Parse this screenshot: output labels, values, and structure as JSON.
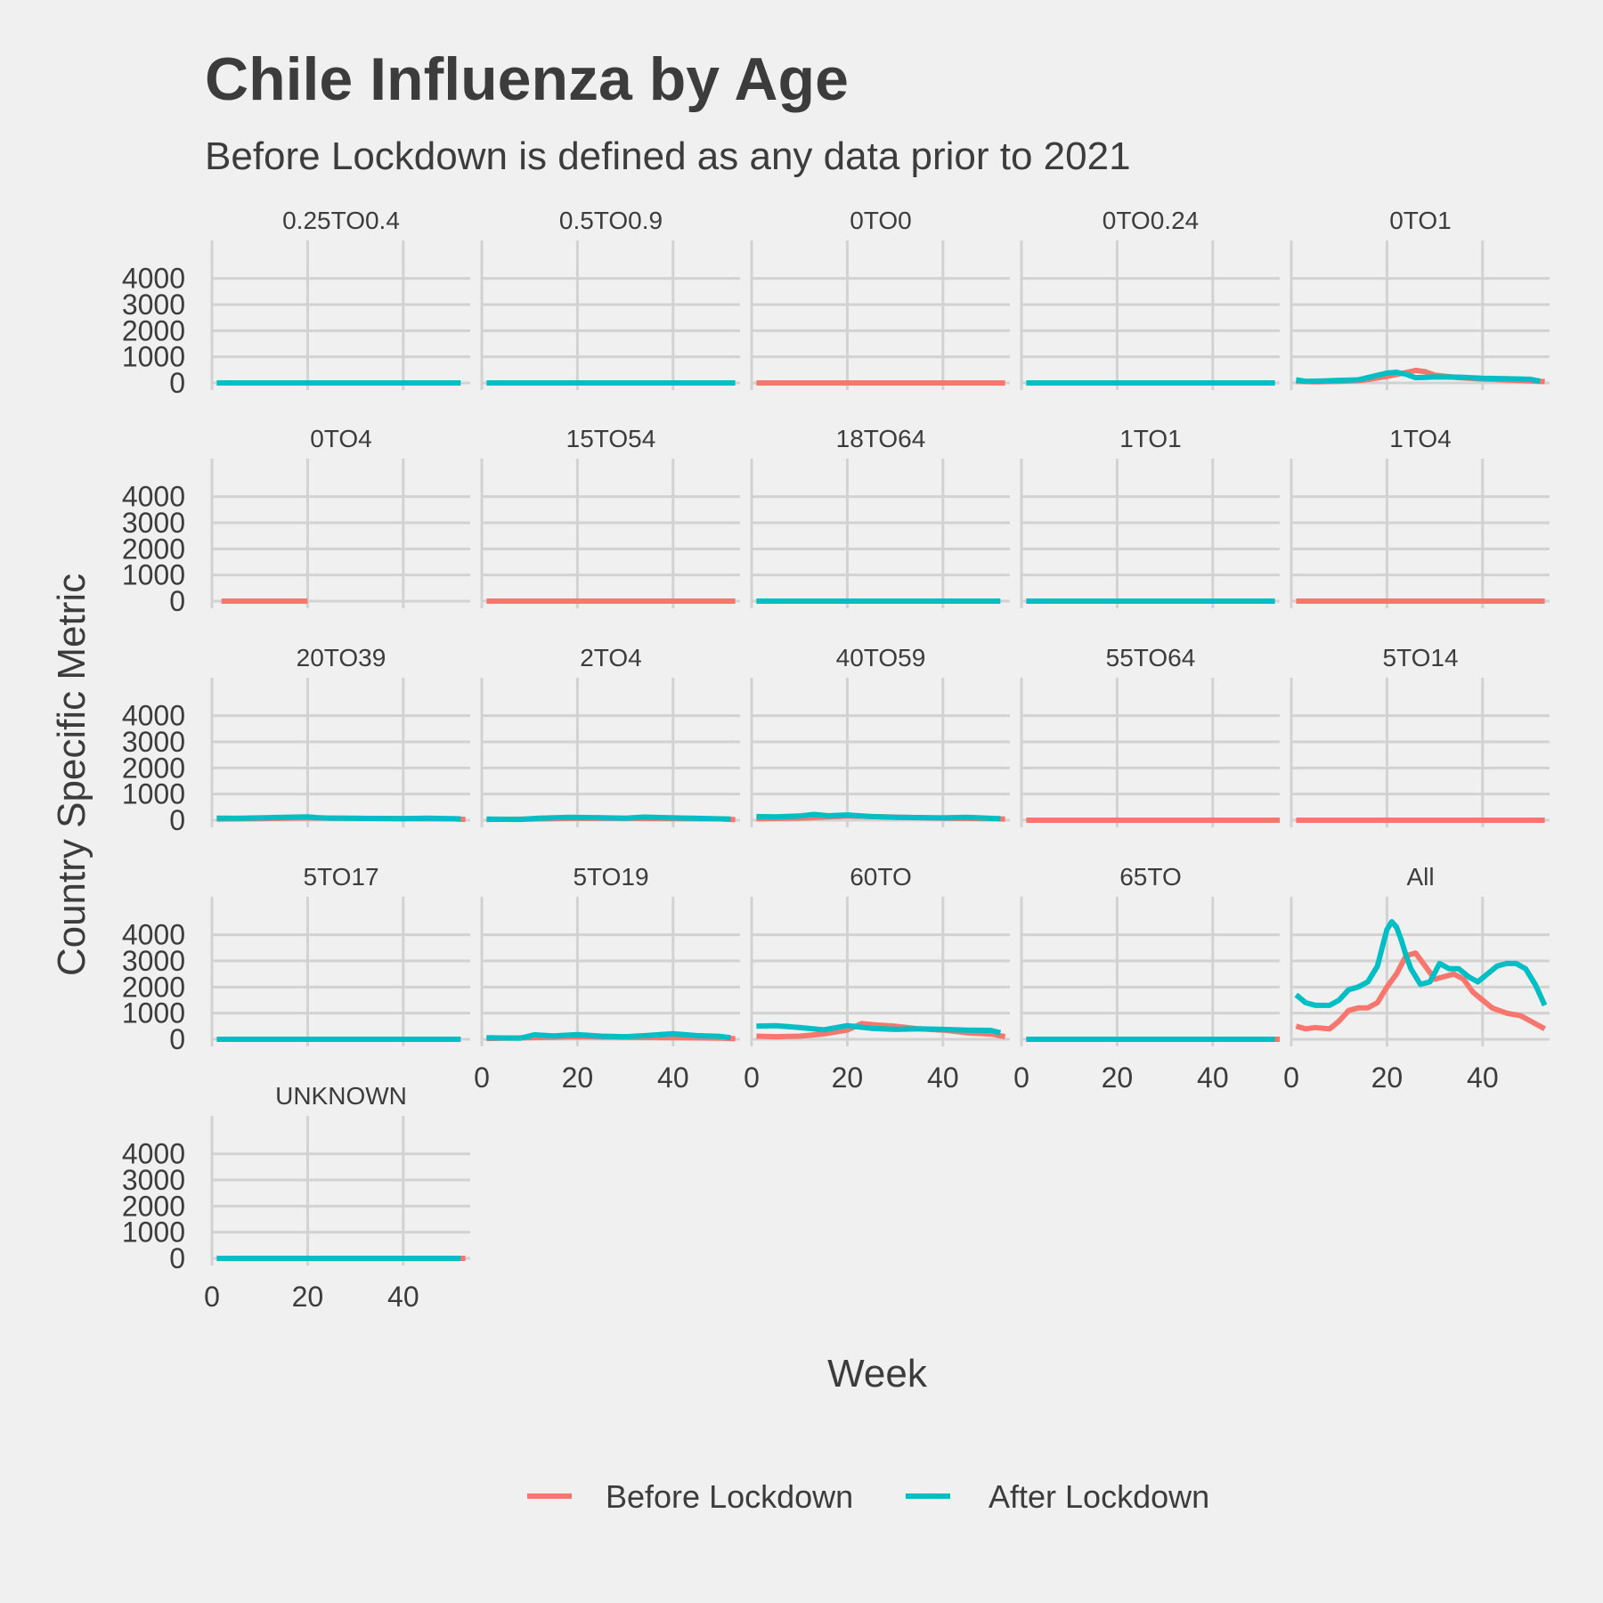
{
  "chart_data": {
    "type": "line",
    "title": "Chile Influenza by Age",
    "subtitle": "Before Lockdown is defined as any data prior to 2021",
    "xlabel": "Week",
    "ylabel": "Country Specific Metric",
    "xlim": [
      0,
      54
    ],
    "ylim": [
      0,
      4500
    ],
    "x_ticks": [
      "0",
      "20",
      "40"
    ],
    "y_ticks": [
      "0",
      "1000",
      "2000",
      "3000",
      "4000"
    ],
    "grid": true,
    "legend_position": "bottom",
    "legend": [
      {
        "name": "Before Lockdown",
        "color": "#f8766d"
      },
      {
        "name": "After Lockdown",
        "color": "#00bfc4"
      }
    ],
    "facets": [
      {
        "label": "0.25TO0.4",
        "series": [
          {
            "name": "After Lockdown",
            "x": [
              1,
              52
            ],
            "y": [
              0,
              0
            ]
          }
        ]
      },
      {
        "label": "0.5TO0.9",
        "series": [
          {
            "name": "After Lockdown",
            "x": [
              1,
              53
            ],
            "y": [
              0,
              0
            ]
          }
        ]
      },
      {
        "label": "0TO0",
        "series": [
          {
            "name": "Before Lockdown",
            "x": [
              1,
              53
            ],
            "y": [
              0,
              0
            ]
          }
        ]
      },
      {
        "label": "0TO0.24",
        "series": [
          {
            "name": "After Lockdown",
            "x": [
              1,
              53
            ],
            "y": [
              0,
              0
            ]
          }
        ]
      },
      {
        "label": "0TO1",
        "series": [
          {
            "name": "Before Lockdown",
            "x": [
              1,
              5,
              10,
              15,
              20,
              24,
              26,
              28,
              30,
              35,
              40,
              45,
              50,
              53
            ],
            "y": [
              60,
              40,
              60,
              100,
              250,
              400,
              480,
              430,
              300,
              200,
              150,
              110,
              80,
              50
            ]
          },
          {
            "name": "After Lockdown",
            "x": [
              1,
              3,
              6,
              10,
              14,
              17,
              20,
              22,
              24,
              26,
              28,
              30,
              35,
              40,
              45,
              50,
              52
            ],
            "y": [
              120,
              60,
              70,
              100,
              120,
              250,
              380,
              410,
              330,
              200,
              210,
              230,
              220,
              180,
              160,
              140,
              70
            ]
          }
        ]
      },
      {
        "label": "0TO4",
        "series": [
          {
            "name": "Before Lockdown",
            "x": [
              2,
              20
            ],
            "y": [
              0,
              0
            ]
          }
        ]
      },
      {
        "label": "15TO54",
        "series": [
          {
            "name": "Before Lockdown",
            "x": [
              1,
              53
            ],
            "y": [
              0,
              0
            ]
          }
        ]
      },
      {
        "label": "18TO64",
        "series": [
          {
            "name": "After Lockdown",
            "x": [
              1,
              52
            ],
            "y": [
              0,
              0
            ]
          }
        ]
      },
      {
        "label": "1TO1",
        "series": [
          {
            "name": "After Lockdown",
            "x": [
              1,
              53
            ],
            "y": [
              0,
              0
            ]
          }
        ]
      },
      {
        "label": "1TO4",
        "series": [
          {
            "name": "Before Lockdown",
            "x": [
              1,
              53
            ],
            "y": [
              0,
              0
            ]
          }
        ]
      },
      {
        "label": "20TO39",
        "series": [
          {
            "name": "Before Lockdown",
            "x": [
              1,
              10,
              20,
              30,
              40,
              50,
              53
            ],
            "y": [
              40,
              60,
              90,
              70,
              60,
              50,
              30
            ]
          },
          {
            "name": "After Lockdown",
            "x": [
              1,
              5,
              10,
              15,
              20,
              22,
              25,
              30,
              40,
              45,
              50,
              52
            ],
            "y": [
              80,
              70,
              90,
              110,
              130,
              100,
              80,
              70,
              60,
              80,
              60,
              50
            ]
          }
        ]
      },
      {
        "label": "2TO4",
        "series": [
          {
            "name": "Before Lockdown",
            "x": [
              1,
              10,
              20,
              30,
              40,
              50,
              53
            ],
            "y": [
              30,
              40,
              80,
              70,
              60,
              50,
              20
            ]
          },
          {
            "name": "After Lockdown",
            "x": [
              1,
              8,
              12,
              18,
              24,
              30,
              34,
              40,
              45,
              52
            ],
            "y": [
              40,
              30,
              80,
              110,
              100,
              80,
              120,
              90,
              70,
              40
            ]
          }
        ]
      },
      {
        "label": "40TO59",
        "series": [
          {
            "name": "Before Lockdown",
            "x": [
              1,
              10,
              20,
              30,
              40,
              50,
              53
            ],
            "y": [
              60,
              80,
              160,
              120,
              80,
              60,
              40
            ]
          },
          {
            "name": "After Lockdown",
            "x": [
              1,
              5,
              10,
              13,
              16,
              20,
              25,
              30,
              40,
              45,
              50,
              52
            ],
            "y": [
              140,
              130,
              160,
              220,
              170,
              200,
              140,
              110,
              90,
              110,
              70,
              60
            ]
          }
        ]
      },
      {
        "label": "55TO64",
        "series": [
          {
            "name": "Before Lockdown",
            "x": [
              1,
              54
            ],
            "y": [
              0,
              0
            ]
          }
        ]
      },
      {
        "label": "5TO14",
        "series": [
          {
            "name": "Before Lockdown",
            "x": [
              1,
              53
            ],
            "y": [
              0,
              0
            ]
          }
        ]
      },
      {
        "label": "5TO17",
        "series": [
          {
            "name": "After Lockdown",
            "x": [
              1,
              52
            ],
            "y": [
              0,
              0
            ]
          }
        ]
      },
      {
        "label": "5TO19",
        "series": [
          {
            "name": "Before Lockdown",
            "x": [
              1,
              10,
              20,
              30,
              40,
              50,
              53
            ],
            "y": [
              30,
              60,
              100,
              80,
              60,
              40,
              20
            ]
          },
          {
            "name": "After Lockdown",
            "x": [
              1,
              8,
              11,
              15,
              20,
              25,
              30,
              35,
              40,
              45,
              50,
              52
            ],
            "y": [
              60,
              40,
              170,
              130,
              180,
              120,
              100,
              150,
              210,
              140,
              110,
              60
            ]
          }
        ]
      },
      {
        "label": "60TO",
        "series": [
          {
            "name": "Before Lockdown",
            "x": [
              1,
              5,
              10,
              15,
              20,
              23,
              26,
              30,
              35,
              40,
              45,
              50,
              53
            ],
            "y": [
              120,
              100,
              120,
              200,
              350,
              600,
              550,
              500,
              400,
              350,
              250,
              200,
              100
            ]
          },
          {
            "name": "After Lockdown",
            "x": [
              1,
              5,
              10,
              15,
              20,
              22,
              25,
              30,
              35,
              40,
              45,
              50,
              52
            ],
            "y": [
              500,
              520,
              450,
              360,
              520,
              480,
              420,
              380,
              400,
              380,
              350,
              340,
              250
            ]
          }
        ]
      },
      {
        "label": "65TO",
        "series": [
          {
            "name": "Before Lockdown",
            "x": [
              1,
              54
            ],
            "y": [
              0,
              0
            ]
          },
          {
            "name": "After Lockdown",
            "x": [
              1,
              53
            ],
            "y": [
              0,
              0
            ]
          }
        ]
      },
      {
        "label": "All",
        "series": [
          {
            "name": "Before Lockdown",
            "x": [
              1,
              3,
              5,
              8,
              10,
              12,
              14,
              16,
              18,
              20,
              22,
              24,
              26,
              28,
              30,
              32,
              34,
              36,
              38,
              40,
              42,
              45,
              48,
              50,
              53
            ],
            "y": [
              500,
              400,
              450,
              400,
              700,
              1100,
              1200,
              1200,
              1400,
              2000,
              2500,
              3200,
              3300,
              2800,
              2300,
              2400,
              2500,
              2300,
              1800,
              1500,
              1200,
              1000,
              900,
              700,
              400
            ]
          },
          {
            "name": "After Lockdown",
            "x": [
              1,
              3,
              5,
              8,
              10,
              12,
              14,
              16,
              18,
              19,
              20,
              21,
              22,
              23,
              24,
              25,
              27,
              29,
              31,
              33,
              35,
              37,
              39,
              41,
              43,
              45,
              47,
              49,
              51,
              53
            ],
            "y": [
              1700,
              1400,
              1300,
              1300,
              1500,
              1900,
              2000,
              2200,
              2800,
              3500,
              4200,
              4500,
              4300,
              3800,
              3200,
              2700,
              2100,
              2200,
              2900,
              2700,
              2700,
              2400,
              2200,
              2500,
              2800,
              2900,
              2900,
              2700,
              2100,
              1300
            ]
          }
        ]
      },
      {
        "label": "UNKNOWN",
        "series": [
          {
            "name": "Before Lockdown",
            "x": [
              1,
              53
            ],
            "y": [
              0,
              0
            ]
          },
          {
            "name": "After Lockdown",
            "x": [
              1,
              52
            ],
            "y": [
              0,
              0
            ]
          }
        ]
      }
    ]
  }
}
